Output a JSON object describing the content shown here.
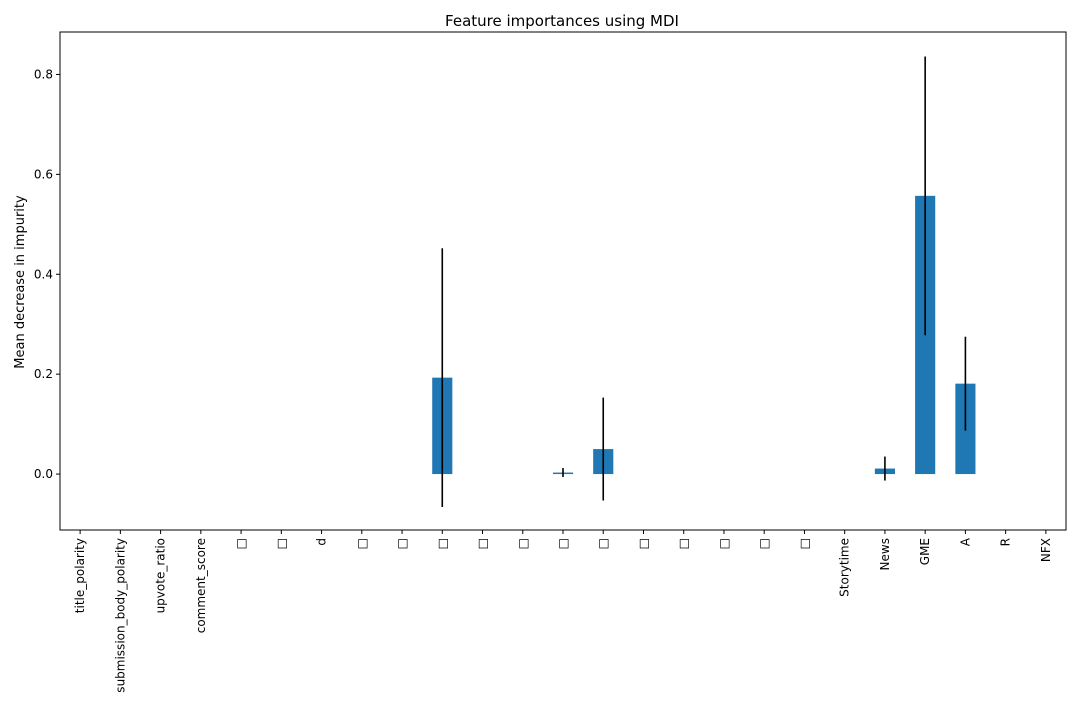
{
  "chart_data": {
    "type": "bar",
    "title": "Feature importances using MDI",
    "xlabel": "",
    "ylabel": "Mean decrease in impurity",
    "ylim": [
      -0.112,
      0.885
    ],
    "yticks": [
      0.0,
      0.2,
      0.4,
      0.6,
      0.8
    ],
    "ytick_labels": [
      "0.0",
      "0.2",
      "0.4",
      "0.6",
      "0.8"
    ],
    "grid": false,
    "legend": "none",
    "bar_color": "#1f77b4",
    "error_color": "#000000",
    "categories": [
      "title_polarity",
      "submission_body_polarity",
      "upvote_ratio",
      "comment_score",
      "□",
      "□",
      "d",
      "□",
      "□",
      "□",
      "□",
      "□",
      "□",
      "□",
      "□",
      "□",
      "□",
      "□",
      "□",
      "Storytime",
      "News",
      "GME",
      "A",
      "R",
      "NFX"
    ],
    "values": [
      0,
      0,
      0,
      0,
      0,
      0,
      0,
      0,
      0,
      0.193,
      0,
      0,
      0.003,
      0.05,
      0,
      0,
      0,
      0,
      0,
      0,
      0.011,
      0.557,
      0.181,
      0,
      0
    ],
    "errors": [
      0,
      0,
      0,
      0,
      0,
      0,
      0,
      0,
      0,
      0.259,
      0,
      0,
      0.009,
      0.103,
      0,
      0,
      0,
      0,
      0,
      0,
      0.024,
      0.279,
      0.094,
      0,
      0
    ]
  }
}
